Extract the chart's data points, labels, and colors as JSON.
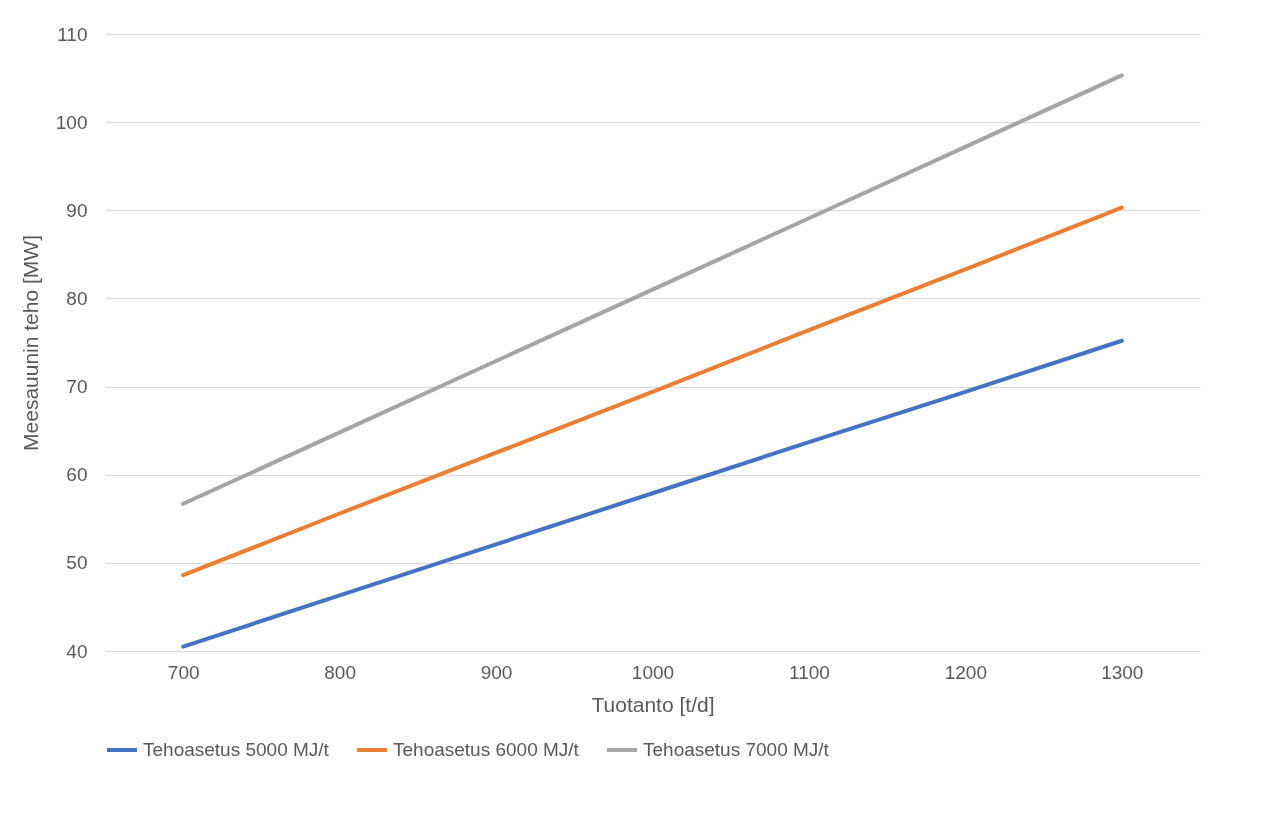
{
  "chart_data": {
    "type": "line",
    "xlabel": "Tuotanto [t/d]",
    "ylabel": "Meesauunin teho [MW]",
    "x": [
      700,
      800,
      900,
      1000,
      1100,
      1200,
      1300
    ],
    "series": [
      {
        "name": "Tehoasetus 5000 MJ/t",
        "color": "#4472c4",
        "values": [
          40.5,
          46.3,
          52.1,
          57.9,
          63.7,
          69.4,
          75.2
        ]
      },
      {
        "name": "Tehoasetus 6000 MJ/t",
        "color": "#ed7d31",
        "values": [
          48.6,
          55.6,
          62.5,
          69.4,
          76.4,
          83.3,
          90.3
        ]
      },
      {
        "name": "Tehoasetus 7000 MJ/t",
        "color": "#a5a5a5",
        "values": [
          56.7,
          64.8,
          72.9,
          81.0,
          89.1,
          97.2,
          105.3
        ]
      }
    ],
    "xlim": [
      650,
      1350
    ],
    "xticks": [
      700,
      800,
      900,
      1000,
      1100,
      1200,
      1300
    ],
    "ylim": [
      40,
      110
    ],
    "yticks": [
      40,
      50,
      60,
      70,
      80,
      90,
      100,
      110
    ],
    "grid": "y",
    "legend": "bottom",
    "marker": "none",
    "line_style": "solid"
  }
}
